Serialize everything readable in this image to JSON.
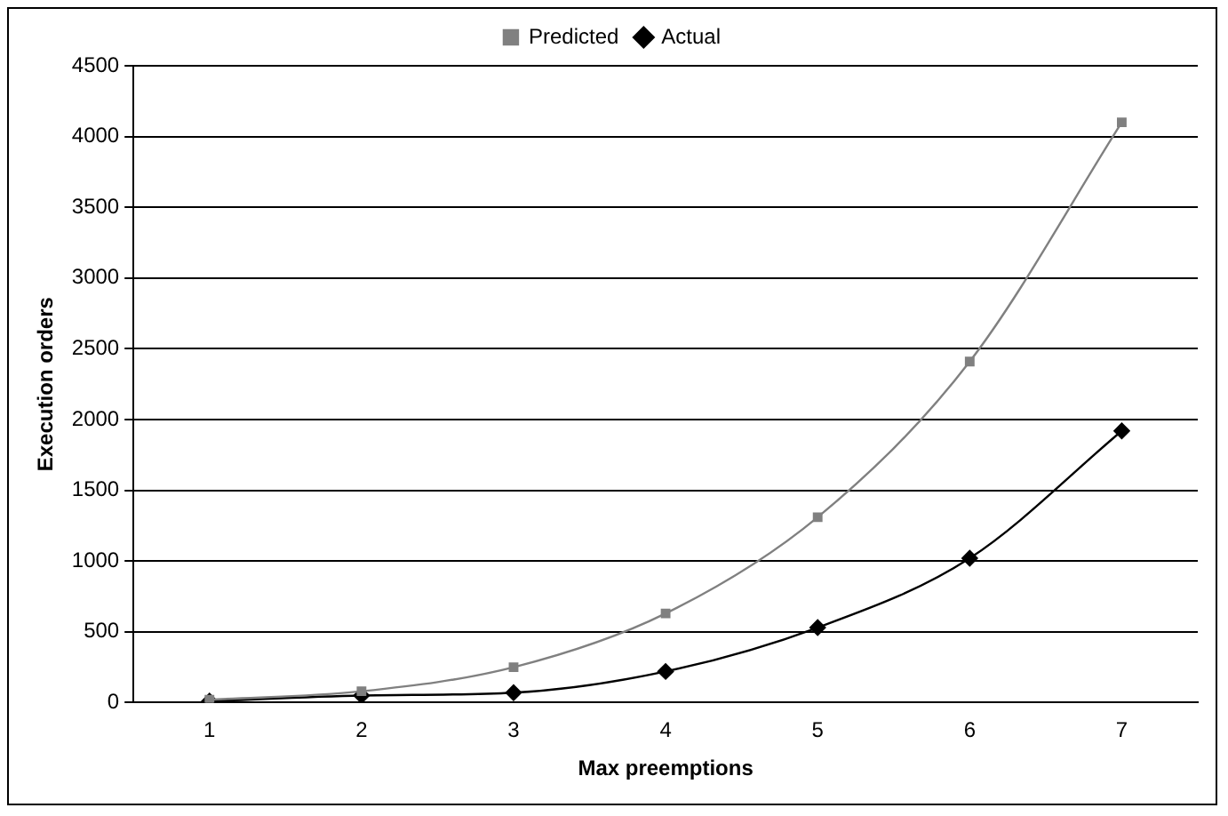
{
  "chart_data": {
    "type": "line",
    "xlabel": "Max preemptions",
    "ylabel": "Execution orders",
    "categories": [
      "1",
      "2",
      "3",
      "4",
      "5",
      "6",
      "7"
    ],
    "series": [
      {
        "name": "Actual",
        "color": "#000000",
        "marker": "diamond",
        "values": [
          10,
          50,
          70,
          220,
          530,
          1020,
          1920
        ]
      },
      {
        "name": "Predicted",
        "color": "#808080",
        "marker": "square",
        "values": [
          20,
          80,
          250,
          630,
          1310,
          2410,
          4100
        ]
      }
    ],
    "ylim": [
      0,
      4500
    ],
    "yticks": [
      0,
      500,
      1000,
      1500,
      2000,
      2500,
      3000,
      3500,
      4000,
      4500
    ],
    "grid": "y",
    "legend": "top",
    "line_style": "solid"
  }
}
